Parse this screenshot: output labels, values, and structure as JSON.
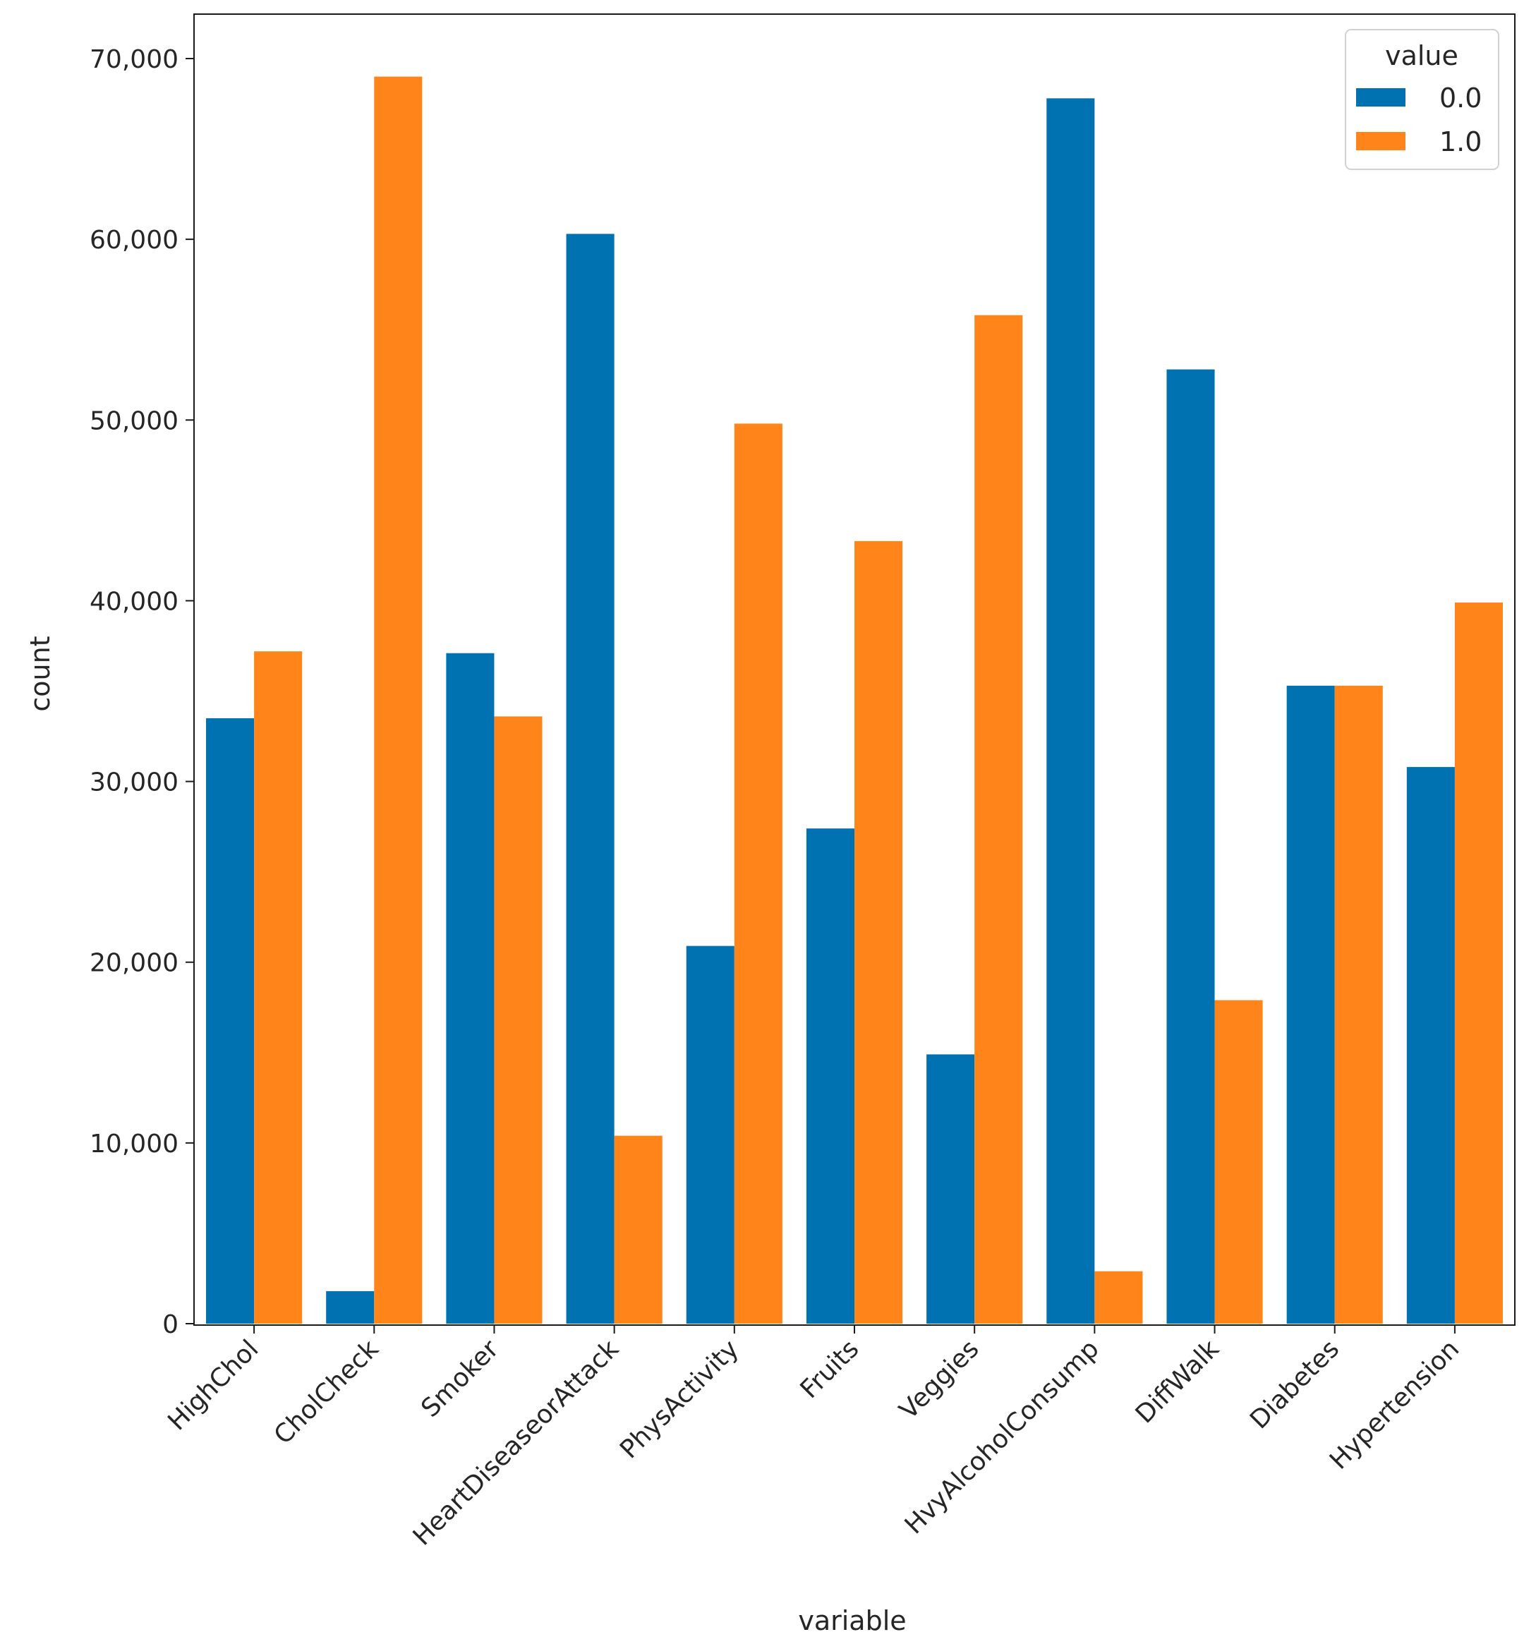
{
  "chart_data": {
    "type": "bar",
    "title": "",
    "xlabel": "variable",
    "ylabel": "count",
    "ylim": [
      0,
      72500
    ],
    "yticks": [
      0,
      10000,
      20000,
      30000,
      40000,
      50000,
      60000,
      70000
    ],
    "ytick_labels": [
      "0",
      "10,000",
      "20,000",
      "30,000",
      "40,000",
      "50,000",
      "60,000",
      "70,000"
    ],
    "grid": false,
    "legend": {
      "title": "value",
      "position": "top-right"
    },
    "categories": [
      "HighChol",
      "CholCheck",
      "Smoker",
      "HeartDiseaseorAttack",
      "PhysActivity",
      "Fruits",
      "Veggies",
      "HvyAlcoholConsump",
      "DiffWalk",
      "Diabetes",
      "Hypertension"
    ],
    "series": [
      {
        "name": "0.0",
        "color": "#0072B2",
        "values": [
          33500,
          1800,
          37100,
          60300,
          20900,
          27400,
          14900,
          67800,
          52800,
          35300,
          30800
        ]
      },
      {
        "name": "1.0",
        "color": "#FF851B",
        "values": [
          37200,
          69000,
          33600,
          10400,
          49800,
          43300,
          55800,
          2900,
          17900,
          35300,
          39900
        ]
      }
    ]
  }
}
